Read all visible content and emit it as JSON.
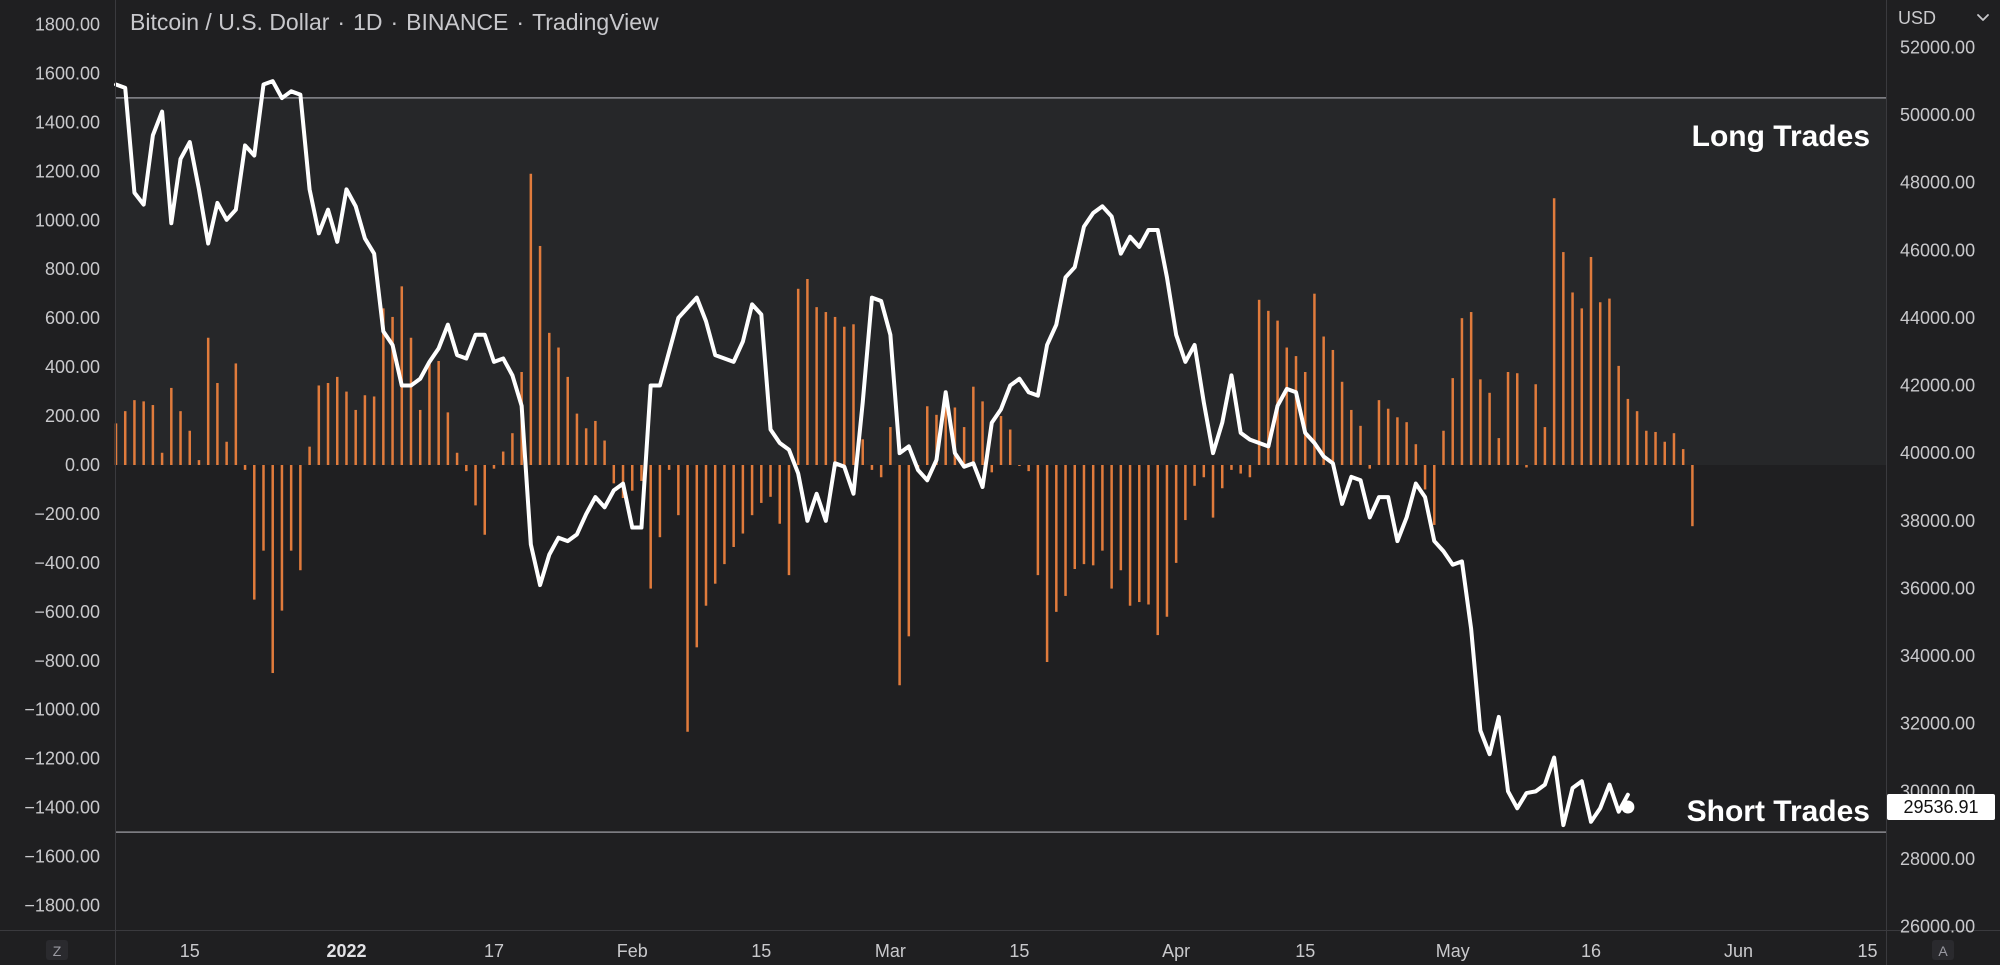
{
  "header": {
    "symbol": "Bitcoin / U.S. Dollar",
    "interval": "1D",
    "exchange": "BINANCE",
    "source": "TradingView",
    "separator": "·"
  },
  "right_axis": {
    "currency": "USD",
    "dropdown_icon": "chevron-down-icon"
  },
  "corner_buttons": {
    "left": "Z",
    "right": "A"
  },
  "zone_labels": {
    "long": "Long Trades",
    "short": "Short Trades"
  },
  "price_tag": {
    "value": "29536.91"
  },
  "chart_data": {
    "type": "bar+line",
    "left_axis": {
      "ticks": [
        "1800.00",
        "1600.00",
        "1400.00",
        "1200.00",
        "1000.00",
        "800.00",
        "600.00",
        "400.00",
        "200.00",
        "0.00",
        "−200.00",
        "−400.00",
        "−600.00",
        "−800.00",
        "−1000.00",
        "−1200.00",
        "−1400.00",
        "−1600.00",
        "−1800.00"
      ],
      "range": [
        -1900,
        1900
      ]
    },
    "right_axis": {
      "ticks": [
        "52000.00",
        "50000.00",
        "48000.00",
        "46000.00",
        "44000.00",
        "42000.00",
        "40000.00",
        "38000.00",
        "36000.00",
        "34000.00",
        "32000.00",
        "30000.00",
        "28000.00",
        "26000.00"
      ],
      "range": [
        25900,
        53400
      ]
    },
    "x_axis": {
      "ticks": [
        {
          "label": "15",
          "bold": false,
          "day": 8
        },
        {
          "label": "2022",
          "bold": true,
          "day": 25
        },
        {
          "label": "17",
          "bold": false,
          "day": 41
        },
        {
          "label": "Feb",
          "bold": false,
          "day": 56
        },
        {
          "label": "15",
          "bold": false,
          "day": 70
        },
        {
          "label": "Mar",
          "bold": false,
          "day": 84
        },
        {
          "label": "15",
          "bold": false,
          "day": 98
        },
        {
          "label": "Apr",
          "bold": false,
          "day": 115
        },
        {
          "label": "15",
          "bold": false,
          "day": 129
        },
        {
          "label": "May",
          "bold": false,
          "day": 145
        },
        {
          "label": "16",
          "bold": false,
          "day": 160
        },
        {
          "label": "Jun",
          "bold": false,
          "day": 176
        },
        {
          "label": "15",
          "bold": false,
          "day": 190
        }
      ],
      "day_range": [
        0,
        192
      ]
    },
    "levels": {
      "long": 1500,
      "short": -1500
    },
    "colors": {
      "bars": "#e07b3c",
      "line": "#ffffff",
      "background": "#1f1f21",
      "long_zone": "#262729",
      "level_line": "#8a8a90",
      "axis_divider": "#3a3a3e"
    },
    "histogram": [
      170,
      220,
      265,
      260,
      245,
      50,
      315,
      220,
      140,
      20,
      520,
      335,
      95,
      415,
      -20,
      -550,
      -350,
      -850,
      -595,
      -350,
      -430,
      75,
      325,
      335,
      360,
      300,
      225,
      285,
      280,
      640,
      605,
      730,
      520,
      225,
      425,
      425,
      215,
      50,
      -25,
      -165,
      -285,
      -15,
      55,
      130,
      380,
      1190,
      895,
      540,
      480,
      360,
      210,
      150,
      180,
      100,
      -75,
      -135,
      -105,
      -65,
      -505,
      -295,
      -20,
      -205,
      -1090,
      -745,
      -575,
      -485,
      -405,
      -335,
      -280,
      -205,
      -155,
      -130,
      -240,
      -450,
      720,
      760,
      645,
      625,
      605,
      565,
      575,
      105,
      -20,
      -50,
      155,
      -900,
      -700,
      -20,
      240,
      205,
      275,
      235,
      155,
      320,
      260,
      -30,
      200,
      145,
      0,
      -25,
      -450,
      -805,
      -600,
      -535,
      -425,
      -405,
      -410,
      -350,
      -505,
      -430,
      -575,
      -560,
      -570,
      -695,
      -620,
      -400,
      -225,
      -85,
      -50,
      -215,
      -95,
      -20,
      -35,
      -50,
      675,
      630,
      590,
      480,
      445,
      380,
      700,
      525,
      470,
      340,
      225,
      160,
      -15,
      265,
      230,
      195,
      175,
      85,
      -100,
      -245,
      140,
      355,
      600,
      625,
      350,
      295,
      110,
      380,
      375,
      -10,
      330,
      155,
      1090,
      870,
      705,
      640,
      850,
      665,
      680,
      405,
      270,
      220,
      140,
      135,
      95,
      130,
      65,
      -250
    ],
    "price": [
      50900,
      50800,
      47700,
      47350,
      49400,
      50100,
      46800,
      48700,
      49200,
      47800,
      46200,
      47400,
      46900,
      47200,
      49100,
      48800,
      50900,
      51000,
      50500,
      50700,
      50600,
      47800,
      46500,
      47200,
      46250,
      47800,
      47300,
      46350,
      45900,
      43600,
      43200,
      42000,
      42000,
      42200,
      42700,
      43100,
      43800,
      42900,
      42800,
      43500,
      43500,
      42700,
      42800,
      42300,
      41400,
      37300,
      36100,
      37000,
      37500,
      37400,
      37600,
      38200,
      38700,
      38400,
      38900,
      39100,
      37800,
      37800,
      42000,
      42000,
      43000,
      44000,
      44300,
      44600,
      43900,
      42900,
      42800,
      42700,
      43300,
      44400,
      44100,
      40700,
      40300,
      40100,
      39400,
      38000,
      38800,
      38000,
      39700,
      39600,
      38800,
      41500,
      44600,
      44500,
      43500,
      40000,
      40200,
      39500,
      39200,
      39800,
      41800,
      40000,
      39600,
      39700,
      39000,
      40900,
      41300,
      42000,
      42200,
      41800,
      41700,
      43200,
      43800,
      45200,
      45500,
      46700,
      47100,
      47300,
      47000,
      45900,
      46400,
      46100,
      46600,
      46600,
      45200,
      43500,
      42700,
      43200,
      41500,
      40000,
      40900,
      42300,
      40600,
      40400,
      40300,
      40200,
      41400,
      41900,
      41800,
      40600,
      40300,
      39900,
      39700,
      38500,
      39300,
      39200,
      38100,
      38700,
      38700,
      37400,
      38100,
      39100,
      38700,
      37400,
      37100,
      36700,
      36800,
      34800,
      31800,
      31100,
      32200,
      30000,
      29500,
      29950,
      30000,
      30200,
      31000,
      29000,
      30100,
      30300,
      29100,
      29500,
      30200,
      29400,
      29900
    ],
    "last_price": 29536.91
  }
}
